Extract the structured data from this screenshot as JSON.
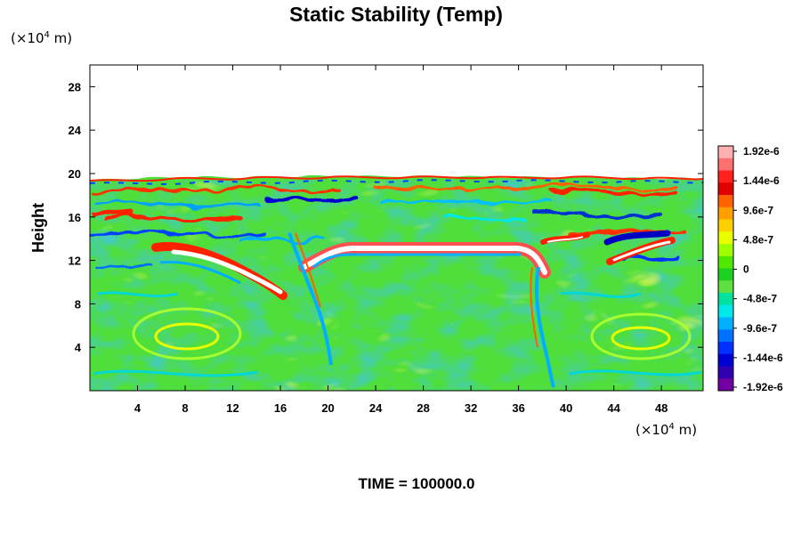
{
  "chart_data": {
    "type": "heatmap",
    "title": "Static Stability (Temp)",
    "ylabel": "Height",
    "xlabel": "",
    "x_unit_prefix": "(×10",
    "x_unit_exp": "4",
    "x_unit_suffix": " m)",
    "y_unit_prefix": "(×10",
    "y_unit_exp": "4",
    "y_unit_suffix": " m)",
    "xlim": [
      0,
      51.5
    ],
    "ylim": [
      0,
      30
    ],
    "x_ticks": [
      4,
      8,
      12,
      16,
      20,
      24,
      28,
      32,
      36,
      40,
      44,
      48
    ],
    "y_ticks": [
      4,
      8,
      12,
      16,
      20,
      24,
      28
    ],
    "field_top_height": 19.5,
    "colorbar": {
      "labels": [
        "1.92e-6",
        "1.44e-6",
        "9.6e-7",
        "4.8e-7",
        "0",
        "-4.8e-7",
        "-9.6e-7",
        "-1.44e-6",
        "-1.92e-6"
      ],
      "colors": [
        "#ffb0b0",
        "#ff7070",
        "#ff2020",
        "#e00000",
        "#ff6000",
        "#ffa000",
        "#ffd000",
        "#e8ff00",
        "#a0ff00",
        "#50e800",
        "#20d020",
        "#60e040",
        "#00e0a0",
        "#00e8e8",
        "#00b0ff",
        "#0070ff",
        "#0030ff",
        "#0000d0",
        "#3000b0",
        "#7000a0"
      ]
    },
    "features": [
      {
        "kind": "stable_layer",
        "x": [
          20.5,
          35.5
        ],
        "y": 12.9,
        "sign": "positive"
      },
      {
        "kind": "stable_layer",
        "x": [
          5.5,
          16.5
        ],
        "y": [
          13.0,
          9.0
        ],
        "sign": "positive"
      },
      {
        "kind": "stable_layer",
        "x": [
          44,
          49
        ],
        "y": [
          11.5,
          13.0
        ],
        "sign": "positive"
      },
      {
        "kind": "unstable_band",
        "x": [
          43,
          49
        ],
        "y": 13.5,
        "sign": "negative"
      },
      {
        "kind": "ragged_top",
        "x": [
          0,
          51.5
        ],
        "y": 19.5,
        "sign": "mixed"
      }
    ]
  },
  "footer": {
    "time_text": "TIME = 100000.0"
  }
}
